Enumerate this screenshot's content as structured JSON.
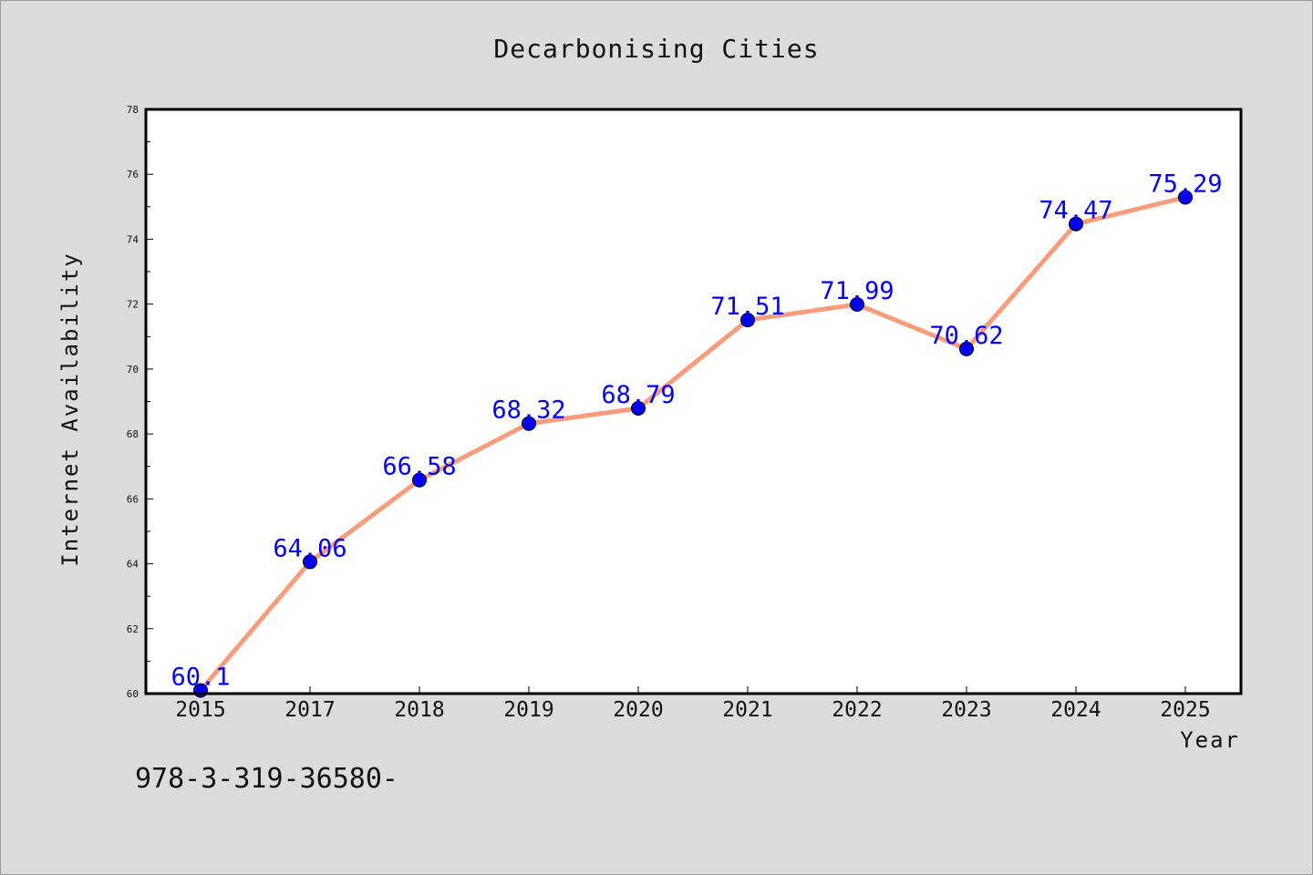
{
  "chart_data": {
    "type": "line",
    "title": "Decarbonising Cities",
    "xlabel": "Year",
    "ylabel": "Internet Availability",
    "categories": [
      "2015",
      "2017",
      "2018",
      "2019",
      "2020",
      "2021",
      "2022",
      "2023",
      "2024",
      "2025"
    ],
    "series": [
      {
        "values": [
          60.1,
          64.06,
          66.58,
          68.32,
          68.79,
          71.51,
          71.99,
          70.62,
          74.47,
          75.29
        ],
        "labels": [
          "60.1",
          "64.06",
          "66.58",
          "68.32",
          "68.79",
          "71.51",
          "71.99",
          "70.62",
          "74.47",
          "75.29"
        ]
      }
    ],
    "ylim": [
      60,
      78
    ],
    "yticks": [
      "60",
      "62",
      "64",
      "66",
      "68",
      "70",
      "72",
      "74",
      "76",
      "78"
    ],
    "grid": false,
    "legend": "none"
  },
  "footnote": "978-3-319-36580-",
  "colors": {
    "background": "#dcdcdc",
    "plot_background": "#ffffff",
    "line": "#f79d7b",
    "marker": "#0000ee",
    "data_label": "#0000ff"
  }
}
